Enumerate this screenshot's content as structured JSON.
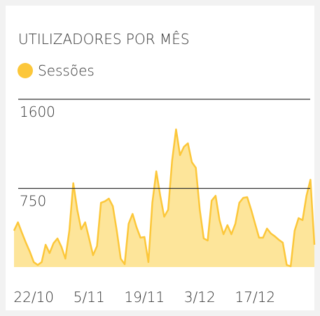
{
  "chart_data": {
    "type": "area",
    "title": "UTILIZADORES POR MÊS",
    "categories": [
      null,
      null,
      null,
      null,
      null,
      "22/10",
      null,
      null,
      null,
      null,
      null,
      null,
      null,
      null,
      null,
      null,
      null,
      null,
      null,
      "5/11",
      null,
      null,
      null,
      null,
      null,
      null,
      null,
      null,
      null,
      null,
      null,
      null,
      null,
      "19/11",
      null,
      null,
      null,
      null,
      null,
      null,
      null,
      null,
      null,
      null,
      null,
      null,
      null,
      "3/12",
      null,
      null,
      null,
      null,
      null,
      null,
      null,
      null,
      null,
      null,
      null,
      null,
      null,
      "17/12",
      null,
      null,
      null,
      null,
      null,
      null,
      null,
      null,
      null,
      null,
      null,
      null,
      null,
      null,
      null
    ],
    "series": [
      {
        "name": "Sessões",
        "color": "#fcc73a",
        "values": [
          347,
          427,
          327,
          233,
          147,
          47,
          20,
          47,
          213,
          133,
          227,
          273,
          193,
          80,
          347,
          800,
          547,
          360,
          427,
          273,
          113,
          200,
          613,
          627,
          653,
          580,
          347,
          80,
          27,
          413,
          507,
          380,
          280,
          287,
          47,
          613,
          913,
          680,
          480,
          547,
          1013,
          1313,
          1067,
          1147,
          1180,
          1000,
          947,
          547,
          273,
          253,
          633,
          680,
          447,
          313,
          400,
          313,
          413,
          613,
          660,
          667,
          547,
          413,
          280,
          280,
          367,
          320,
          293,
          260,
          233,
          20,
          7,
          347,
          467,
          447,
          680,
          833,
          213
        ]
      }
    ],
    "ylim": [
      0,
      1600
    ],
    "yticks": [
      750,
      1600
    ],
    "grid": true
  }
}
